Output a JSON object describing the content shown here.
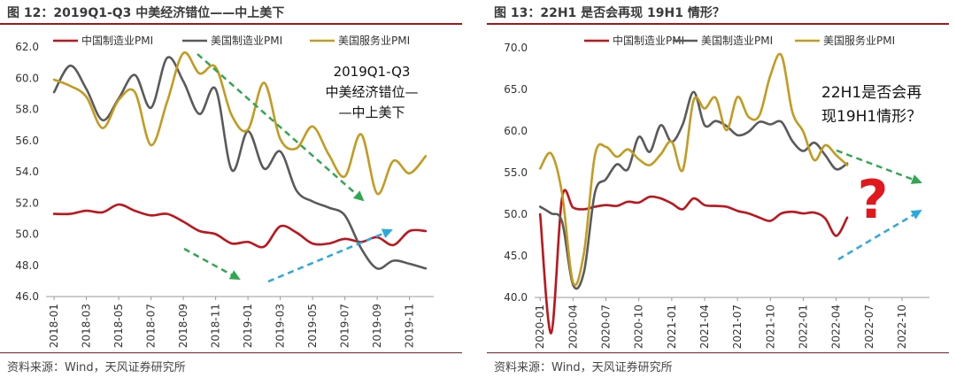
{
  "source_note": "资料来源：Wind，天风证券研究所",
  "chart_data": [
    {
      "type": "line",
      "title": "图 12：2019Q1-Q3 中美经济错位——中上美下",
      "annotation_lines": [
        "2019Q1-Q3",
        "中美经济错位—",
        "—中上美下"
      ],
      "x": [
        "2018-01",
        "2018-02",
        "2018-03",
        "2018-04",
        "2018-05",
        "2018-06",
        "2018-07",
        "2018-08",
        "2018-09",
        "2018-10",
        "2018-11",
        "2018-12",
        "2019-01",
        "2019-02",
        "2019-03",
        "2019-04",
        "2019-05",
        "2019-06",
        "2019-07",
        "2019-08",
        "2019-09",
        "2019-10",
        "2019-11",
        "2019-12"
      ],
      "tick_labels": [
        "2018-01",
        "2018-03",
        "2018-05",
        "2018-07",
        "2018-09",
        "2018-11",
        "2019-01",
        "2019-03",
        "2019-05",
        "2019-07",
        "2019-09",
        "2019-11"
      ],
      "ylim": [
        46,
        62
      ],
      "y_ticks": [
        "46.0",
        "48.0",
        "50.0",
        "52.0",
        "54.0",
        "56.0",
        "58.0",
        "60.0",
        "62.0"
      ],
      "series": [
        {
          "name": "中国制造业PMI",
          "color": "#c0141b",
          "values": [
            51.3,
            51.3,
            51.5,
            51.4,
            51.9,
            51.5,
            51.2,
            51.3,
            50.8,
            50.2,
            50.0,
            49.4,
            49.5,
            49.2,
            50.5,
            50.1,
            49.4,
            49.4,
            49.7,
            49.5,
            49.8,
            49.3,
            50.2,
            50.2
          ]
        },
        {
          "name": "美国制造业PMI",
          "color": "#5a5a5a",
          "values": [
            59.1,
            60.8,
            59.3,
            57.3,
            58.7,
            60.2,
            58.1,
            61.3,
            59.8,
            57.7,
            59.3,
            54.1,
            56.6,
            54.2,
            55.3,
            52.8,
            52.1,
            51.7,
            51.2,
            49.1,
            47.8,
            48.3,
            48.1,
            47.8
          ]
        },
        {
          "name": "美国服务业PMI",
          "color": "#c39b1e",
          "values": [
            59.9,
            59.5,
            58.8,
            56.8,
            58.6,
            59.1,
            55.7,
            58.5,
            61.6,
            60.3,
            60.7,
            57.6,
            56.7,
            59.7,
            56.1,
            55.5,
            56.9,
            55.1,
            53.7,
            56.4,
            52.6,
            54.7,
            53.9,
            55.0
          ]
        }
      ]
    },
    {
      "type": "line",
      "title": "图 13：22H1 是否会再现 19H1 情形？",
      "annotation_lines": [
        "22H1是否会再",
        "现19H1情形？"
      ],
      "question_mark": "?",
      "x": [
        "2020-01",
        "2020-02",
        "2020-03",
        "2020-04",
        "2020-05",
        "2020-06",
        "2020-07",
        "2020-08",
        "2020-09",
        "2020-10",
        "2020-11",
        "2020-12",
        "2021-01",
        "2021-02",
        "2021-03",
        "2021-04",
        "2021-05",
        "2021-06",
        "2021-07",
        "2021-08",
        "2021-09",
        "2021-10",
        "2021-11",
        "2021-12",
        "2022-01",
        "2022-02",
        "2022-03",
        "2022-04",
        "2022-05"
      ],
      "tick_labels": [
        "2020-01",
        "2020-04",
        "2020-07",
        "2020-10",
        "2021-01",
        "2021-04",
        "2021-07",
        "2021-10",
        "2022-01",
        "2022-04",
        "2022-07",
        "2022-10"
      ],
      "ylim": [
        40,
        70
      ],
      "y_ticks": [
        "40.0",
        "45.0",
        "50.0",
        "55.0",
        "60.0",
        "65.0",
        "70.0"
      ],
      "series": [
        {
          "name": "中国制造业PMI",
          "color": "#c0141b",
          "values": [
            50.0,
            35.7,
            52.0,
            50.8,
            50.6,
            50.9,
            51.1,
            51.0,
            51.5,
            51.4,
            52.1,
            51.9,
            51.3,
            50.6,
            51.9,
            51.1,
            51.0,
            50.9,
            50.4,
            50.1,
            49.6,
            49.2,
            50.1,
            50.3,
            50.1,
            50.2,
            49.5,
            47.4,
            49.6
          ]
        },
        {
          "name": "美国制造业PMI",
          "color": "#5a5a5a",
          "values": [
            50.9,
            50.1,
            49.1,
            41.5,
            43.1,
            52.6,
            54.2,
            56.0,
            55.4,
            59.3,
            57.5,
            60.7,
            58.7,
            60.8,
            64.7,
            60.7,
            61.2,
            60.6,
            59.5,
            59.9,
            61.1,
            60.8,
            61.1,
            58.8,
            57.6,
            58.6,
            57.1,
            55.4,
            56.1
          ]
        },
        {
          "name": "美国服务业PMI",
          "color": "#c39b1e",
          "values": [
            55.5,
            57.3,
            52.5,
            41.8,
            45.4,
            57.1,
            58.1,
            56.9,
            57.8,
            56.6,
            55.9,
            57.2,
            58.7,
            55.3,
            63.7,
            62.7,
            64.0,
            60.1,
            64.1,
            61.7,
            61.9,
            66.7,
            69.1,
            62.3,
            59.9,
            56.5,
            58.3,
            57.1,
            55.9
          ]
        }
      ]
    }
  ]
}
